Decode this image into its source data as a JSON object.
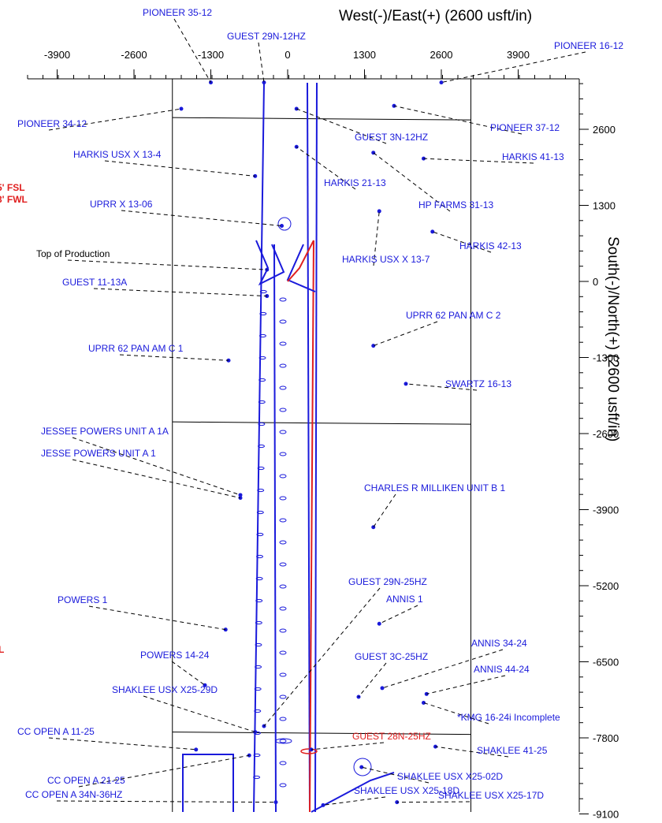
{
  "chart_data": {
    "type": "scatter",
    "title": "",
    "xlabel": "West(-)/East(+) (2600 usft/in)",
    "ylabel": "South(-)/North(+) (2600 usft/in)",
    "xlim": [
      -4400,
      4700
    ],
    "ylim": [
      -9200,
      3800
    ],
    "x_ticks": [
      -3900,
      -2600,
      -1300,
      0,
      1300,
      2600,
      3900
    ],
    "y_ticks": [
      2600,
      1300,
      0,
      -1300,
      -2600,
      -3900,
      -5200,
      -6500,
      -7800,
      -9100
    ],
    "x_tick_labels": [
      "-3900",
      "-2600",
      "-1300",
      "0",
      "1300",
      "2600",
      "3900"
    ],
    "y_tick_labels": [
      "2600",
      "1300",
      "0",
      "-1300",
      "-2600",
      "-3900",
      "-5200",
      "-6500",
      "-7800",
      "-9100"
    ],
    "section_lines": {
      "vertical_x": [
        -1950,
        3100
      ],
      "horizontal_y": [
        2800,
        -2400,
        -7700
      ]
    },
    "side_notes": [
      "5' FSL",
      "3' FWL",
      "L"
    ],
    "colors": {
      "offset": "#1a1adb",
      "subject": "#e02020",
      "leader": "#000000",
      "grid": "#000000"
    },
    "wells": [
      {
        "name": "PIONEER 35-12",
        "x": -1300,
        "y": 3400
      },
      {
        "name": "GUEST 29N-12HZ",
        "x": -400,
        "y": 3400
      },
      {
        "name": "PIONEER 16-12",
        "x": 2600,
        "y": 3400
      },
      {
        "name": "PIONEER 34-12",
        "x": -1800,
        "y": 2950
      },
      {
        "name": "PIONEER 37-12",
        "x": 1800,
        "y": 3000
      },
      {
        "name": "GUEST 3N-12HZ",
        "x": 150,
        "y": 2950
      },
      {
        "name": "HARKIS USX X 13-4",
        "x": -550,
        "y": 1800
      },
      {
        "name": "HARKIS 21-13",
        "x": 150,
        "y": 2300
      },
      {
        "name": "HARKIS 41-13",
        "x": 2300,
        "y": 2100
      },
      {
        "name": "HP FARMS 31-13",
        "x": 1450,
        "y": 2200
      },
      {
        "name": "UPRR X 13-06",
        "x": -100,
        "y": 950
      },
      {
        "name": "HARKIS USX X 13-7",
        "x": 1550,
        "y": 1200
      },
      {
        "name": "HARKIS 42-13",
        "x": 2450,
        "y": 850
      },
      {
        "name": "Top of Production",
        "x": -350,
        "y": 200
      },
      {
        "name": "GUEST 11-13A",
        "x": -350,
        "y": -250
      },
      {
        "name": "UPRR 62 PAN AM C 2",
        "x": 1450,
        "y": -1100
      },
      {
        "name": "UPRR 62 PAN AM C 1",
        "x": -1000,
        "y": -1350
      },
      {
        "name": "SWARTZ 16-13",
        "x": 2000,
        "y": -1750
      },
      {
        "name": "JESSEE POWERS UNIT A 1A",
        "x": -800,
        "y": -3650
      },
      {
        "name": "JESSE POWERS UNIT A 1",
        "x": -800,
        "y": -3700
      },
      {
        "name": "CHARLES R MILLIKEN UNIT B 1",
        "x": 1450,
        "y": -4200
      },
      {
        "name": "GUEST 29N-25HZ",
        "x": -400,
        "y": -7600
      },
      {
        "name": "POWERS 1",
        "x": -1050,
        "y": -5950
      },
      {
        "name": "ANNIS 1",
        "x": 1550,
        "y": -5850
      },
      {
        "name": "ANNIS 34-24",
        "x": 1600,
        "y": -6950
      },
      {
        "name": "POWERS 14-24",
        "x": -1400,
        "y": -6900
      },
      {
        "name": "GUEST 3C-25HZ",
        "x": 1200,
        "y": -7100
      },
      {
        "name": "ANNIS 44-24",
        "x": 2350,
        "y": -7050
      },
      {
        "name": "SHAKLEE USX X25-29D",
        "x": -550,
        "y": -7700
      },
      {
        "name": "*KMG 16-24i Incomplete",
        "x": 2300,
        "y": -7200
      },
      {
        "name": "CC OPEN A 11-25",
        "x": -1550,
        "y": -8000
      },
      {
        "name": "GUEST 28N-25HZ",
        "x": 400,
        "y": -8000
      },
      {
        "name": "SHAKLEE 41-25",
        "x": 2500,
        "y": -7950
      },
      {
        "name": "SHAKLEE USX X25-02D",
        "x": 1250,
        "y": -8300
      },
      {
        "name": "CC OPEN A 21-25",
        "x": -650,
        "y": -8100
      },
      {
        "name": "SHAKLEE USX X25-18D",
        "x": 600,
        "y": -8950
      },
      {
        "name": "CC OPEN A 34N-36HZ",
        "x": -200,
        "y": -8900
      },
      {
        "name": "SHAKLEE USX X25-17D",
        "x": 1850,
        "y": -8900
      }
    ]
  }
}
